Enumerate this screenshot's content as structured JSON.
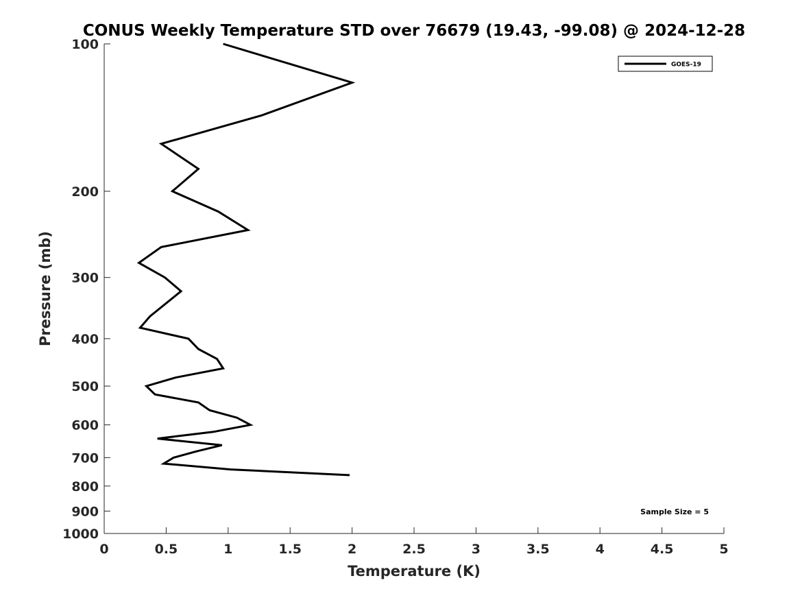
{
  "chart_data": {
    "type": "line",
    "title": "CONUS Weekly Temperature STD over 76679 (19.43, -99.08) @ 2024-12-28",
    "xlabel": "Temperature (K)",
    "ylabel": "Pressure (mb)",
    "xlim": [
      0,
      5
    ],
    "ylim": [
      1000,
      100
    ],
    "yscale": "log",
    "grid": false,
    "legend_position": "top-right",
    "x_ticks": [
      "0",
      "0.5",
      "1",
      "1.5",
      "2",
      "2.5",
      "3",
      "3.5",
      "4",
      "4.5",
      "5"
    ],
    "x_tick_values": [
      0,
      0.5,
      1,
      1.5,
      2,
      2.5,
      3,
      3.5,
      4,
      4.5,
      5
    ],
    "y_ticks": [
      "100",
      "200",
      "300",
      "400",
      "500",
      "600",
      "700",
      "800",
      "900",
      "1000"
    ],
    "y_tick_values": [
      100,
      200,
      300,
      400,
      500,
      600,
      700,
      800,
      900,
      1000
    ],
    "annotation": "Sample Size = 5",
    "series": [
      {
        "name": "GOES-19",
        "color": "#000000",
        "temperature": [
          0.96,
          2.0,
          1.27,
          0.46,
          0.76,
          0.55,
          0.92,
          1.16,
          0.46,
          0.28,
          0.49,
          0.62,
          0.37,
          0.29,
          0.68,
          0.76,
          0.91,
          0.96,
          0.58,
          0.34,
          0.41,
          0.76,
          0.85,
          1.07,
          1.18,
          0.88,
          0.43,
          0.95,
          0.74,
          0.56,
          0.48,
          1.02,
          1.98
        ],
        "pressure": [
          100,
          120,
          140,
          160,
          180,
          200,
          220,
          240,
          260,
          280,
          300,
          320,
          360,
          380,
          400,
          420,
          440,
          460,
          480,
          500,
          520,
          540,
          560,
          580,
          600,
          620,
          640,
          660,
          680,
          700,
          720,
          740,
          760
        ]
      }
    ]
  }
}
